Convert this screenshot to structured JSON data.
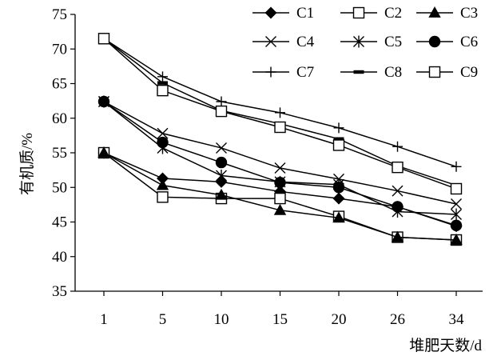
{
  "chart_data": {
    "type": "line",
    "title": "",
    "xlabel": "堆肥天数/d",
    "ylabel": "有机质/%",
    "categories": [
      "1",
      "5",
      "10",
      "15",
      "20",
      "26",
      "34"
    ],
    "ylim": [
      35,
      75
    ],
    "yticks": [
      35,
      40,
      45,
      50,
      55,
      60,
      65,
      70,
      75
    ],
    "grid": false,
    "legend_position": "top-right",
    "series": [
      {
        "name": "C1",
        "marker": "diamond-filled",
        "values": [
          55.0,
          51.3,
          50.8,
          49.4,
          48.4,
          47.2,
          44.4
        ]
      },
      {
        "name": "C2",
        "marker": "square-open",
        "values": [
          55.0,
          48.6,
          48.4,
          48.4,
          45.8,
          42.8,
          42.4
        ]
      },
      {
        "name": "C3",
        "marker": "triangle-filled",
        "values": [
          55.0,
          50.3,
          48.9,
          46.7,
          45.6,
          42.8,
          42.4
        ]
      },
      {
        "name": "C4",
        "marker": "x",
        "values": [
          62.4,
          57.8,
          55.7,
          52.8,
          51.2,
          49.5,
          47.6
        ]
      },
      {
        "name": "C5",
        "marker": "asterisk",
        "values": [
          62.4,
          55.7,
          51.7,
          50.8,
          50.4,
          46.5,
          46.1
        ]
      },
      {
        "name": "C6",
        "marker": "circle-filled",
        "values": [
          62.4,
          56.5,
          53.6,
          50.7,
          50.0,
          47.2,
          44.5
        ]
      },
      {
        "name": "C7",
        "marker": "plus",
        "values": [
          71.5,
          66.0,
          62.4,
          60.8,
          58.6,
          55.9,
          53.0
        ]
      },
      {
        "name": "C8",
        "marker": "dash",
        "values": [
          71.5,
          65.1,
          61.1,
          59.2,
          57.0,
          53.1,
          50.3
        ]
      },
      {
        "name": "C9",
        "marker": "square-open",
        "values": [
          71.5,
          64.0,
          61.0,
          58.7,
          56.1,
          52.9,
          49.8
        ]
      }
    ]
  }
}
